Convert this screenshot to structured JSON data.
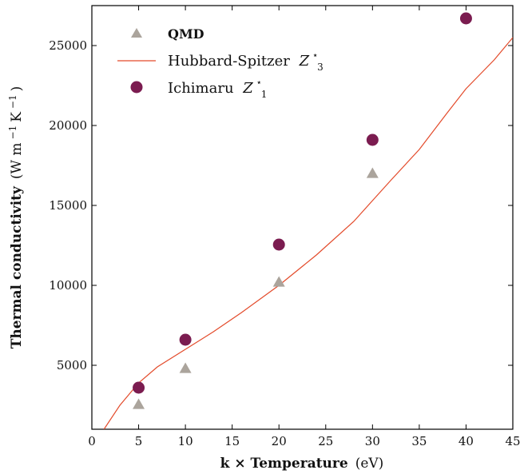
{
  "chart_data": {
    "type": "scatter",
    "xlabel_bold": "k × Temperature",
    "xlabel_unit": "(eV)",
    "ylabel_bold": "Thermal conductivity",
    "ylabel_unit": "(W m",
    "ylabel_unit_exp1": "−1",
    "ylabel_unit_mid": " K",
    "ylabel_unit_exp2": "−1",
    "ylabel_unit_end": ")",
    "xlim": [
      0,
      45
    ],
    "ylim": [
      1000,
      27500
    ],
    "xticks": [
      0,
      5,
      10,
      15,
      20,
      25,
      30,
      35,
      40,
      45
    ],
    "yticks": [
      5000,
      10000,
      15000,
      20000,
      25000
    ],
    "legend_position": "top-left",
    "series": [
      {
        "name": "QMD",
        "kind": "scatter",
        "marker": "triangle",
        "color": "#aba49c",
        "x": [
          5,
          10,
          20,
          30
        ],
        "y": [
          2550,
          4800,
          10200,
          17000
        ]
      },
      {
        "name": "Hubbard-Spitzer",
        "name_math": "Z",
        "name_sup": "⋆",
        "name_sub": "3",
        "kind": "line",
        "color": "#e34a2a",
        "x": [
          1.3,
          3,
          5,
          7,
          10,
          13,
          16,
          20,
          24,
          28,
          30,
          32,
          35,
          38,
          40,
          43,
          45
        ],
        "y": [
          1000,
          2500,
          3900,
          4900,
          6000,
          7100,
          8300,
          10000,
          11900,
          14000,
          15300,
          16600,
          18500,
          20800,
          22300,
          24100,
          25500
        ]
      },
      {
        "name": "Ichimaru",
        "name_math": "Z",
        "name_sup": "⋆",
        "name_sub": "1",
        "kind": "scatter",
        "marker": "circle",
        "color": "#7b1c50",
        "x": [
          5,
          10,
          20,
          30,
          40
        ],
        "y": [
          3600,
          6600,
          12550,
          19100,
          26700
        ]
      }
    ]
  }
}
